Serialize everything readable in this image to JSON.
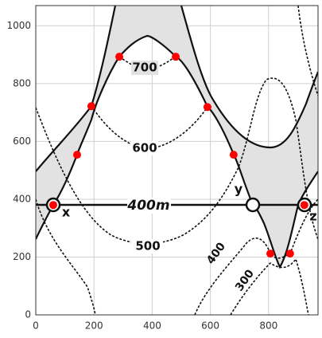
{
  "chart_data": {
    "type": "scatter",
    "x": [
      60,
      142,
      191,
      287,
      481,
      590,
      680,
      806,
      874,
      923
    ],
    "y": [
      380,
      554,
      722,
      893,
      893,
      719,
      554,
      212,
      212,
      380
    ],
    "color": "#ff0000",
    "xlim": [
      0,
      970
    ],
    "ylim": [
      0,
      1070
    ],
    "xticks": [
      0,
      200,
      400,
      600,
      800
    ],
    "yticks": [
      0,
      200,
      400,
      600,
      800,
      1000
    ],
    "grid": true,
    "annotations": [
      "700",
      "600",
      "500",
      "400m",
      "400",
      "300",
      "x",
      "y",
      "z"
    ]
  }
}
